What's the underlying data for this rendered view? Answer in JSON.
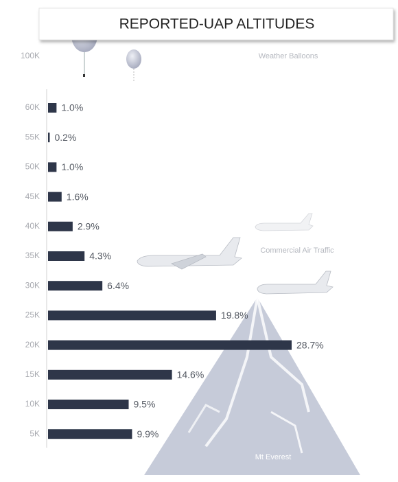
{
  "chart_data": {
    "type": "barh",
    "title": "REPORTED-UAP ALTITUDES",
    "categories": [
      "100K",
      "60K",
      "55K",
      "50K",
      "45K",
      "40K",
      "35K",
      "30K",
      "25K",
      "20K",
      "15K",
      "10K",
      "5K"
    ],
    "values": [
      null,
      1.0,
      0.2,
      1.0,
      1.6,
      2.9,
      4.3,
      6.4,
      19.8,
      28.7,
      14.6,
      9.5,
      9.9
    ],
    "value_labels": [
      null,
      "1.0%",
      "0.2%",
      "1.0%",
      "1.6%",
      "2.9%",
      "4.3%",
      "6.4%",
      "19.8%",
      "28.7%",
      "14.6%",
      "9.5%",
      "9.9%"
    ],
    "color": "#2e3649",
    "annotations": [
      "Weather Balloons",
      "Commercial Air Traffic",
      "Mt Everest"
    ]
  }
}
